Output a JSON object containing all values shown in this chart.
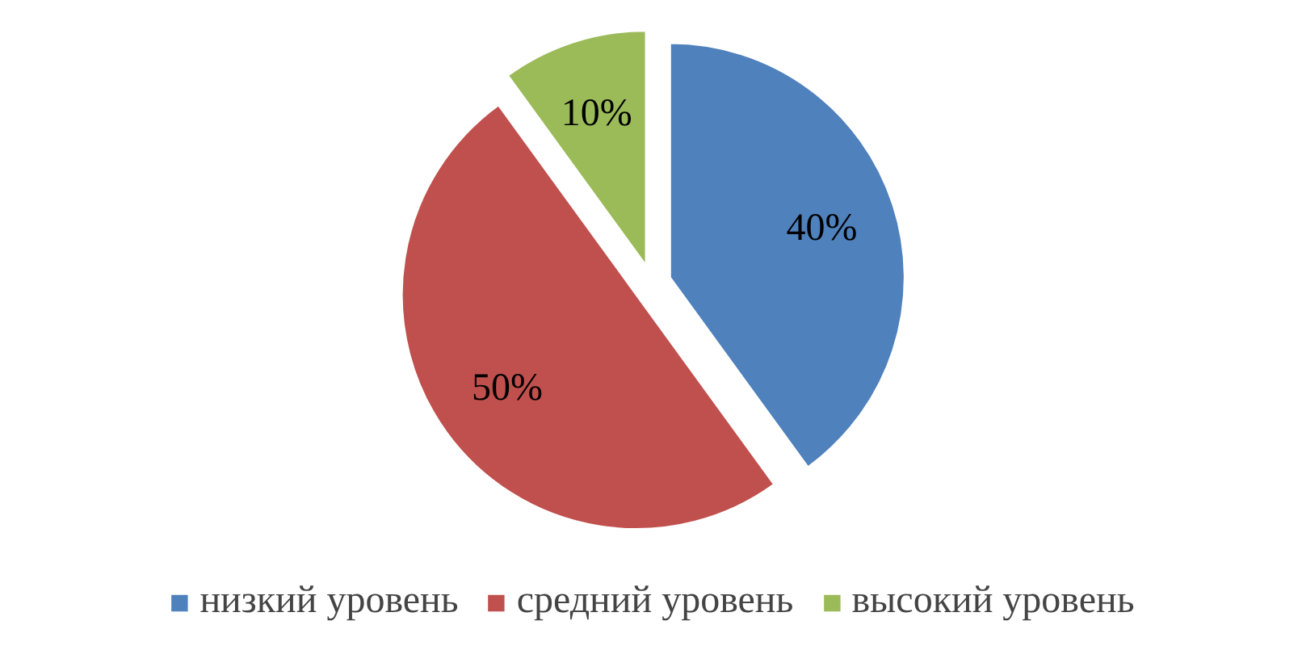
{
  "chart_data": {
    "type": "pie",
    "categories": [
      "низкий уровень",
      "средний уровень",
      "высокий уровень"
    ],
    "values": [
      40,
      50,
      10
    ],
    "colors": [
      "#4f81bd",
      "#c0504d",
      "#9bbb59"
    ],
    "value_labels": [
      "40%",
      "50%",
      "10%"
    ],
    "legend": "bottom"
  }
}
